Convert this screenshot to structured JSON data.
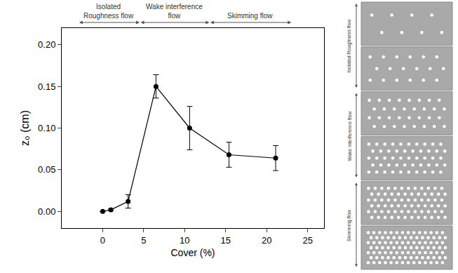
{
  "chart_data": {
    "type": "line",
    "x": [
      0,
      1,
      3.1,
      6.5,
      10.6,
      15.4,
      21.1
    ],
    "values": [
      0,
      0.002,
      0.012,
      0.15,
      0.1,
      0.068,
      0.064
    ],
    "errors": [
      0,
      0.001,
      0.008,
      0.014,
      0.026,
      0.015,
      0.015
    ],
    "color": "#000000",
    "marker": "circle",
    "line_style": "solid",
    "x_label": "Cover (%)",
    "y_label": "z₀ (cm)",
    "xlim": [
      -5,
      27
    ],
    "ylim": [
      -0.02,
      0.22
    ],
    "xticks": [
      0,
      5,
      10,
      15,
      20,
      25
    ],
    "yticks": [
      {
        "value": 0,
        "label": "0.00"
      },
      {
        "value": 0.05,
        "label": "0.05"
      },
      {
        "value": 0.1,
        "label": "0.10"
      },
      {
        "value": 0.15,
        "label": "0.15"
      },
      {
        "value": 0.2,
        "label": "0.20"
      }
    ],
    "grid": false,
    "regimes": [
      {
        "label": "Isolated Roughness flow",
        "start": -3,
        "end": 4.5
      },
      {
        "label": "Wake interference flow",
        "start": 4.5,
        "end": 13
      },
      {
        "label": "Skimming flow",
        "start": 13,
        "end": 23
      }
    ]
  }
}
